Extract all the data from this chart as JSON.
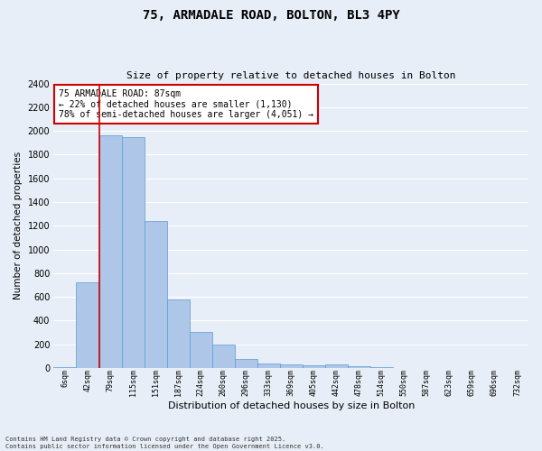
{
  "title_line1": "75, ARMADALE ROAD, BOLTON, BL3 4PY",
  "title_line2": "Size of property relative to detached houses in Bolton",
  "xlabel": "Distribution of detached houses by size in Bolton",
  "ylabel": "Number of detached properties",
  "bin_labels": [
    "6sqm",
    "42sqm",
    "79sqm",
    "115sqm",
    "151sqm",
    "187sqm",
    "224sqm",
    "260sqm",
    "296sqm",
    "333sqm",
    "369sqm",
    "405sqm",
    "442sqm",
    "478sqm",
    "514sqm",
    "550sqm",
    "587sqm",
    "623sqm",
    "659sqm",
    "696sqm",
    "732sqm"
  ],
  "bar_values": [
    10,
    720,
    1960,
    1950,
    1240,
    575,
    305,
    200,
    75,
    40,
    28,
    25,
    32,
    15,
    5,
    3,
    2,
    1,
    1,
    0,
    0
  ],
  "bar_color": "#aec6e8",
  "bar_edge_color": "#5b9bd5",
  "bg_color": "#e8eef7",
  "grid_color": "#ffffff",
  "annotation_text": "75 ARMADALE ROAD: 87sqm\n← 22% of detached houses are smaller (1,130)\n78% of semi-detached houses are larger (4,051) →",
  "annotation_box_color": "#ffffff",
  "annotation_box_edge": "#cc0000",
  "vline_color": "#cc0000",
  "vline_x": 1.5,
  "ylim": [
    0,
    2400
  ],
  "yticks": [
    0,
    200,
    400,
    600,
    800,
    1000,
    1200,
    1400,
    1600,
    1800,
    2000,
    2200,
    2400
  ],
  "footer_line1": "Contains HM Land Registry data © Crown copyright and database right 2025.",
  "footer_line2": "Contains public sector information licensed under the Open Government Licence v3.0."
}
